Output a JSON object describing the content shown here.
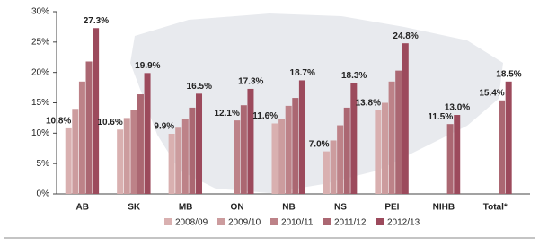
{
  "chart_data": {
    "type": "bar",
    "categories": [
      "AB",
      "SK",
      "MB",
      "ON",
      "NB",
      "NS",
      "PEI",
      "NIHB",
      "Total*"
    ],
    "series": [
      {
        "name": "2008/09",
        "color": "#d9b0b0",
        "values": [
          10.8,
          10.6,
          9.9,
          null,
          11.6,
          7.0,
          13.8,
          null,
          null
        ],
        "value_labels": [
          "10.8%",
          "10.6%",
          "9.9%",
          null,
          "11.6%",
          "7.0%",
          "13.8%",
          null,
          null
        ]
      },
      {
        "name": "2009/10",
        "color": "#cc9c9e",
        "values": [
          14.0,
          12.5,
          10.9,
          null,
          12.3,
          8.8,
          15.0,
          null,
          null
        ]
      },
      {
        "name": "2010/11",
        "color": "#bd8288",
        "values": [
          18.5,
          13.8,
          12.4,
          12.1,
          14.5,
          11.3,
          18.5,
          null,
          null
        ],
        "value_labels": [
          null,
          null,
          null,
          "12.1%",
          null,
          null,
          null,
          null,
          null
        ]
      },
      {
        "name": "2011/12",
        "color": "#ab6772",
        "values": [
          21.8,
          16.4,
          14.2,
          14.6,
          15.8,
          14.2,
          20.3,
          11.5,
          15.4
        ],
        "value_labels": [
          null,
          null,
          null,
          null,
          null,
          null,
          null,
          "11.5%",
          "15.4%"
        ]
      },
      {
        "name": "2012/13",
        "color": "#9c4a5c",
        "values": [
          27.3,
          19.9,
          16.5,
          17.3,
          18.7,
          18.3,
          24.8,
          13.0,
          18.5
        ],
        "value_labels": [
          "27.3%",
          "19.9%",
          "16.5%",
          "17.3%",
          "18.7%",
          "18.3%",
          "24.8%",
          "13.0%",
          "18.5%"
        ]
      }
    ],
    "ylim": [
      0,
      30
    ],
    "yticks": [
      {
        "value": 0,
        "label": "0%"
      },
      {
        "value": 5,
        "label": "5%"
      },
      {
        "value": 10,
        "label": "10%"
      },
      {
        "value": 15,
        "label": "15%"
      },
      {
        "value": 20,
        "label": "20%"
      },
      {
        "value": 25,
        "label": "25%"
      },
      {
        "value": 30,
        "label": "30%"
      }
    ]
  }
}
